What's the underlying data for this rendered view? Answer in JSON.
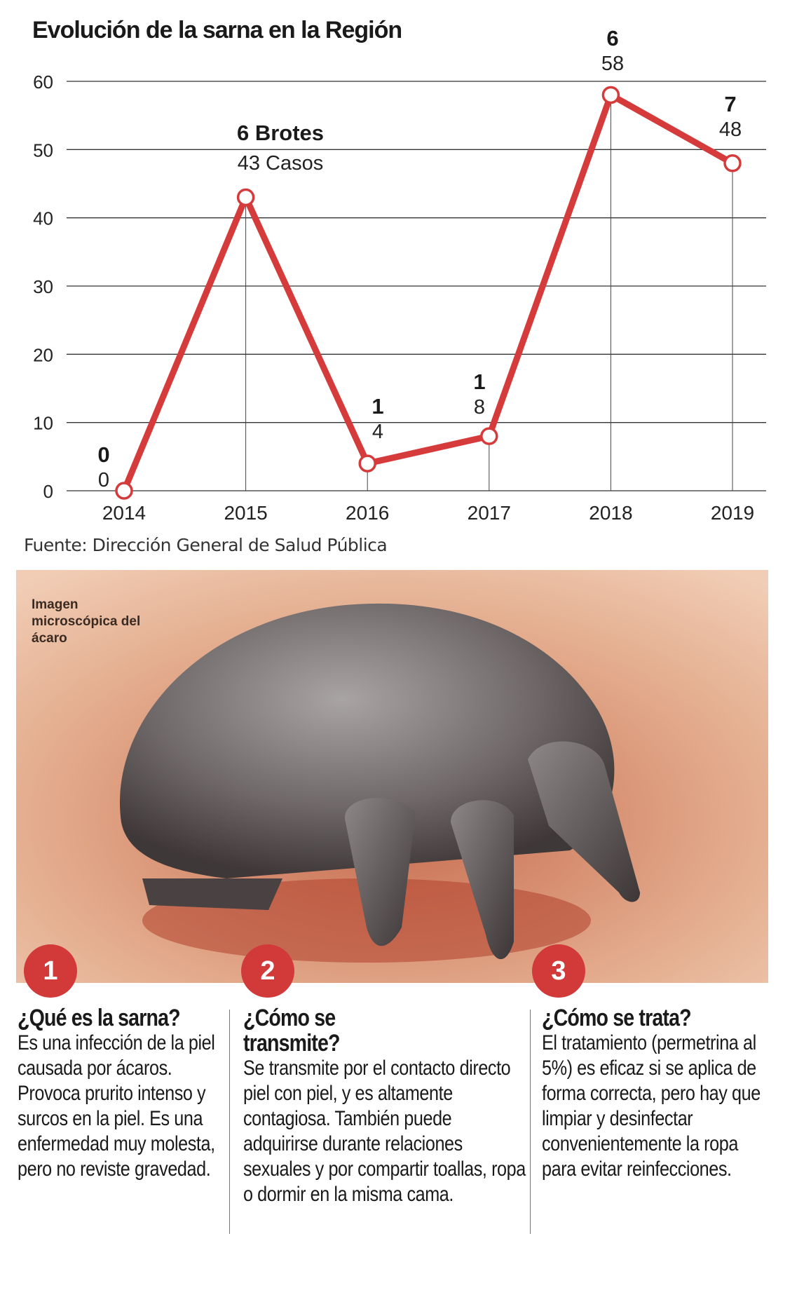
{
  "title": "Evolución de la sarna en la Región",
  "source": "Fuente: Dirección General de Salud Pública",
  "colors": {
    "line": "#d63b3b",
    "badge": "#d23a3a",
    "grid": "#333333"
  },
  "chart_data": {
    "type": "line",
    "title": "Evolución de la sarna en la Región",
    "categories": [
      "2014",
      "2015",
      "2016",
      "2017",
      "2018",
      "2019"
    ],
    "series": [
      {
        "name": "Casos",
        "values": [
          0,
          43,
          4,
          8,
          58,
          48
        ]
      }
    ],
    "brotes": [
      0,
      6,
      1,
      1,
      6,
      7
    ],
    "point_labels": [
      {
        "brotes": "0",
        "casos": "0"
      },
      {
        "brotes": "6 Brotes",
        "casos": "43 Casos"
      },
      {
        "brotes": "1",
        "casos": "4"
      },
      {
        "brotes": "1",
        "casos": "8"
      },
      {
        "brotes": "6",
        "casos": "58"
      },
      {
        "brotes": "7",
        "casos": "48"
      }
    ],
    "yticks": [
      "0",
      "10",
      "20",
      "30",
      "40",
      "50",
      "60"
    ],
    "ylim": [
      0,
      60
    ],
    "grid": true,
    "xlabel": "",
    "ylabel": ""
  },
  "photo": {
    "label": "Imagen microscópica del ácaro"
  },
  "sections": [
    {
      "number": "1",
      "heading": "¿Qué es la sarna?",
      "text": "Es una infección de la piel causada por ácaros. Provoca prurito intenso y surcos en la piel. Es una enfermedad muy molesta, pero no reviste gravedad."
    },
    {
      "number": "2",
      "heading": "¿Cómo se transmite?",
      "text": "Se transmite por el contacto directo piel con piel, y es altamente contagiosa. También puede adquirirse durante relaciones sexuales y por compartir toallas, ropa o dormir en la misma cama."
    },
    {
      "number": "3",
      "heading": "¿Cómo se trata?",
      "text": "El tratamiento (permetrina al 5%) es eficaz si se aplica de forma correcta, pero hay que limpiar y desinfectar convenientemente la ropa para evitar reinfecciones."
    }
  ]
}
